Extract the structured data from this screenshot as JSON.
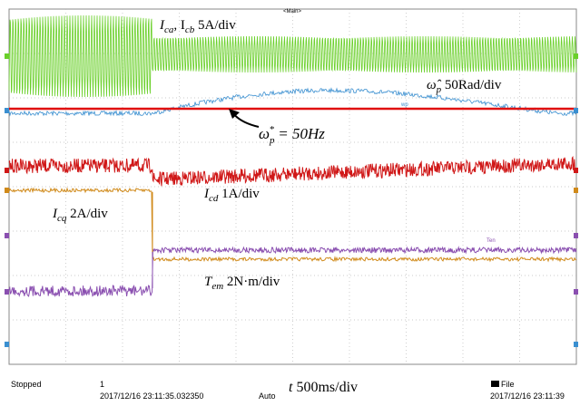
{
  "screen": {
    "title": "<Main>",
    "annotations": [
      {
        "parts": [
          "I",
          "ca",
          ", I",
          "cb",
          " 5A/div"
        ]
      },
      {
        "parts": [
          "ω̂",
          "p",
          " 50Rad/div"
        ]
      },
      {
        "parts": [
          "ω",
          "p",
          "*",
          " = 50Hz"
        ]
      },
      {
        "parts": [
          "I",
          "cd",
          " 1A/div"
        ]
      },
      {
        "parts": [
          "I",
          "cq",
          " 2A/div"
        ]
      },
      {
        "parts": [
          "T",
          "em",
          " 2N·m/div"
        ]
      }
    ],
    "trace_tags": [
      "wp",
      "Ten"
    ]
  },
  "status_bar": {
    "state": "Stopped",
    "channel": "1",
    "start_time": "2017/12/16 23:11:35.032350",
    "mode": "Auto",
    "timebase": {
      "symbol": "t",
      "text": " 500ms/div"
    },
    "save": "File",
    "end_time": "2017/12/16 23:11:39"
  }
}
